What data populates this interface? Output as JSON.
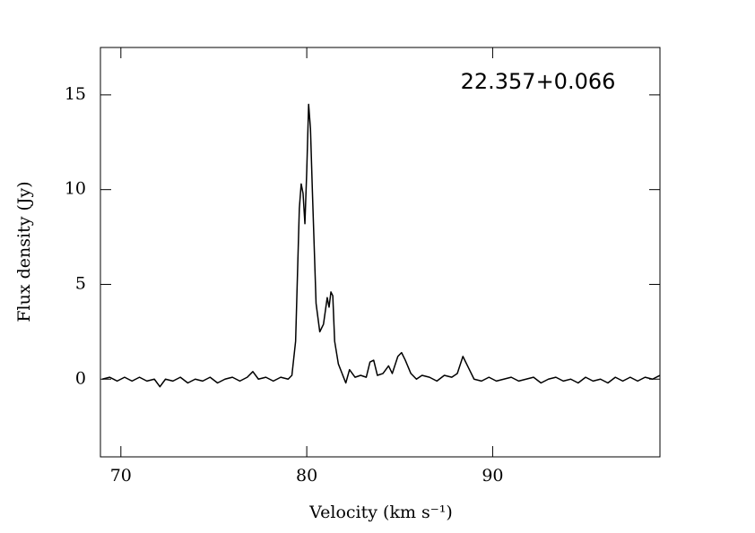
{
  "chart_data": {
    "type": "line",
    "annotation": "22.357+0.066",
    "xlabel": "Velocity (km s⁻¹)",
    "ylabel": "Flux density (Jy)",
    "xlim": [
      68.9,
      99.0
    ],
    "xticks": [
      70,
      80,
      90
    ],
    "ylim": [
      -4.1,
      17.5
    ],
    "yticks": [
      0,
      5,
      10,
      15
    ],
    "x": [
      69.0,
      69.4,
      69.8,
      70.2,
      70.6,
      71.0,
      71.4,
      71.8,
      72.1,
      72.4,
      72.8,
      73.2,
      73.6,
      74.0,
      74.4,
      74.8,
      75.2,
      75.6,
      76.0,
      76.4,
      76.8,
      77.1,
      77.4,
      77.8,
      78.2,
      78.6,
      79.0,
      79.2,
      79.4,
      79.6,
      79.7,
      79.8,
      79.9,
      80.0,
      80.1,
      80.2,
      80.3,
      80.5,
      80.7,
      80.9,
      81.1,
      81.2,
      81.3,
      81.4,
      81.5,
      81.7,
      81.9,
      82.1,
      82.3,
      82.6,
      82.9,
      83.2,
      83.4,
      83.6,
      83.8,
      84.1,
      84.4,
      84.6,
      84.9,
      85.1,
      85.3,
      85.6,
      85.9,
      86.2,
      86.6,
      87.0,
      87.4,
      87.8,
      88.1,
      88.4,
      88.7,
      89.0,
      89.4,
      89.8,
      90.2,
      90.6,
      91.0,
      91.4,
      91.8,
      92.2,
      92.6,
      93.0,
      93.4,
      93.8,
      94.2,
      94.6,
      95.0,
      95.4,
      95.8,
      96.2,
      96.6,
      97.0,
      97.4,
      97.8,
      98.2,
      98.6,
      99.0
    ],
    "series": [
      {
        "color": "#000000",
        "values": [
          0.0,
          0.1,
          -0.1,
          0.1,
          -0.1,
          0.1,
          -0.1,
          0.0,
          -0.4,
          0.0,
          -0.1,
          0.1,
          -0.2,
          0.0,
          -0.1,
          0.1,
          -0.2,
          0.0,
          0.1,
          -0.1,
          0.1,
          0.4,
          0.0,
          0.1,
          -0.1,
          0.1,
          0.0,
          0.2,
          2.0,
          9.0,
          10.3,
          9.8,
          8.2,
          11.0,
          14.5,
          13.2,
          10.0,
          4.0,
          2.5,
          2.9,
          4.3,
          3.8,
          4.6,
          4.4,
          2.0,
          0.8,
          0.3,
          -0.2,
          0.5,
          0.1,
          0.2,
          0.1,
          0.9,
          1.0,
          0.2,
          0.3,
          0.7,
          0.3,
          1.2,
          1.4,
          1.0,
          0.3,
          0.0,
          0.2,
          0.1,
          -0.1,
          0.2,
          0.1,
          0.3,
          1.2,
          0.6,
          0.0,
          -0.1,
          0.1,
          -0.1,
          0.0,
          0.1,
          -0.1,
          0.0,
          0.1,
          -0.2,
          0.0,
          0.1,
          -0.1,
          0.0,
          -0.2,
          0.1,
          -0.1,
          0.0,
          -0.2,
          0.1,
          -0.1,
          0.1,
          -0.1,
          0.1,
          0.0,
          0.2
        ]
      }
    ]
  }
}
